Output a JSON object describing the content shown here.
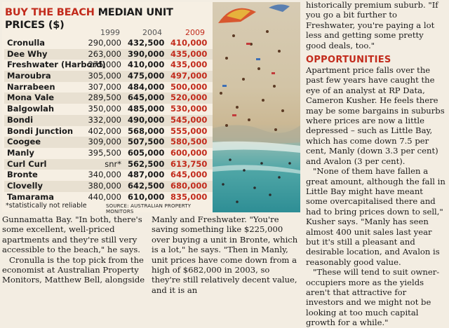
{
  "table": {
    "heading_red": "BUY THE BEACH",
    "heading_rest": " MEDIAN UNIT PRICES ($)",
    "years": [
      "1999",
      "2004",
      "2009"
    ],
    "rows": [
      {
        "suburb": "Cronulla",
        "v1999": "290,000",
        "v2004": "432,500",
        "v2009": "410,000"
      },
      {
        "suburb": "Dee Why",
        "v1999": "263,000",
        "v2004": "390,000",
        "v2009": "435,000"
      },
      {
        "suburb": "Freshwater (Harbord)",
        "v1999": "275,000",
        "v2004": "410,000",
        "v2009": "435,000"
      },
      {
        "suburb": "Maroubra",
        "v1999": "305,000",
        "v2004": "475,000",
        "v2009": "497,000"
      },
      {
        "suburb": "Narrabeen",
        "v1999": "307,000",
        "v2004": "484,000",
        "v2009": "500,000"
      },
      {
        "suburb": "Mona Vale",
        "v1999": "289,500",
        "v2004": "645,000",
        "v2009": "520,000"
      },
      {
        "suburb": "Balgowlah",
        "v1999": "350,000",
        "v2004": "485,000",
        "v2009": "530,000"
      },
      {
        "suburb": "Bondi",
        "v1999": "332,000",
        "v2004": "490,000",
        "v2009": "545,000"
      },
      {
        "suburb": "Bondi Junction",
        "v1999": "402,000",
        "v2004": "568,000",
        "v2009": "555,000"
      },
      {
        "suburb": "Coogee",
        "v1999": "309,000",
        "v2004": "507,500",
        "v2009": "580,500"
      },
      {
        "suburb": "Manly",
        "v1999": "395,500",
        "v2004": "605,000",
        "v2009": "600,000"
      },
      {
        "suburb": "Curl Curl",
        "v1999": "snr*",
        "v2004": "562,500",
        "v2009": "613,750"
      },
      {
        "suburb": "Bronte",
        "v1999": "340,000",
        "v2004": "487,000",
        "v2009": "645,000"
      },
      {
        "suburb": "Clovelly",
        "v1999": "380,000",
        "v2004": "642,500",
        "v2009": "680,000"
      },
      {
        "suburb": "Tamarama",
        "v1999": "440,000",
        "v2004": "610,000",
        "v2009": "835,000"
      }
    ],
    "footnote": "*statistically not reliable",
    "source": "SOURCE: AUSTRALIAN PROPERTY MONITORS"
  },
  "article": {
    "col1_p1": "Gunnamatta Bay. \"In both, there's some excellent, well-priced apartments and they're still very accessible to the beach,\" he says.",
    "col1_p2": "Cronulla is the top pick from the economist at Australian Property Monitors, Matthew Bell, alongside",
    "col2_p1": "Manly and Freshwater. \"You're saving something like $225,000 over buying a unit in Bronte, which is a lot,\" he says. \"Then in Manly, unit prices have come down from a high of $682,000 in 2003, so they're still relatively decent value, and it is an",
    "col3_p1": "historically premium suburb. \"If you go a bit further to Freshwater, you're paying a lot less and getting some pretty good deals, too.\"",
    "col3_subhead": "OPPORTUNITIES",
    "col3_p2": "Apartment price falls over the past few years have caught the eye of an analyst at RP Data, Cameron Kusher. He feels there may be some bargains in suburbs where prices are now a little depressed – such as Little Bay, which has come down 7.5 per cent, Manly (down 3.3 per cent) and Avalon (3 per cent).",
    "col3_p3": "\"None of them have fallen a great amount, although the fall in Little Bay might have meant some overcapitalised there and had to bring prices down to sell,\" Kusher says. \"Manly has seen almost 400 unit sales last year but it's still a pleasant and desirable location, and Avalon is reasonably good value.",
    "col3_p4": "\"These will tend to suit owner-occupiers more as the yields aren't that attractive for investors and we might not be looking at too much capital growth for a while.\""
  },
  "colors": {
    "accent_red": "#c22b1c",
    "paper": "#f3ede2"
  }
}
